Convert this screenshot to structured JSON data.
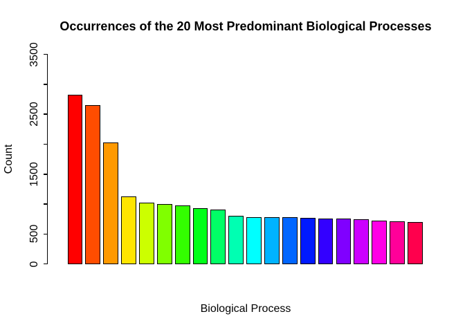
{
  "title": "Occurrences of the 20 Most Predominant Biological Processes",
  "chart_data": {
    "type": "bar",
    "title": "Occurrences of the 20 Most Predominant Biological Processes",
    "xlabel": "Biological Process",
    "ylabel": "Count",
    "ylim": [
      0,
      3500
    ],
    "yticks": [
      0,
      500,
      1000,
      1500,
      2000,
      2500,
      3000,
      3500
    ],
    "ytick_labels": [
      "0",
      "500",
      "",
      "1500",
      "",
      "2500",
      "",
      "3500"
    ],
    "n_bars": 20,
    "x_tick_labels_visible": false,
    "grid": false,
    "legend": "none",
    "values": [
      2820,
      2650,
      2030,
      1130,
      1030,
      1005,
      975,
      930,
      905,
      800,
      785,
      782,
      780,
      770,
      762,
      755,
      745,
      720,
      710,
      700
    ],
    "bar_colors": [
      "#FF0000",
      "#FF4D00",
      "#FF9900",
      "#FFE500",
      "#CCFF00",
      "#80FF00",
      "#33FF00",
      "#00FF19",
      "#00FF66",
      "#00FFB2",
      "#00FFFF",
      "#00B3FF",
      "#0066FF",
      "#001AFF",
      "#3300FF",
      "#8000FF",
      "#CC00FF",
      "#FF00E6",
      "#FF0099",
      "#FF004D"
    ],
    "bar_border_color": "#000000",
    "axis_color": "#000000",
    "background_color": "#FFFFFF"
  }
}
